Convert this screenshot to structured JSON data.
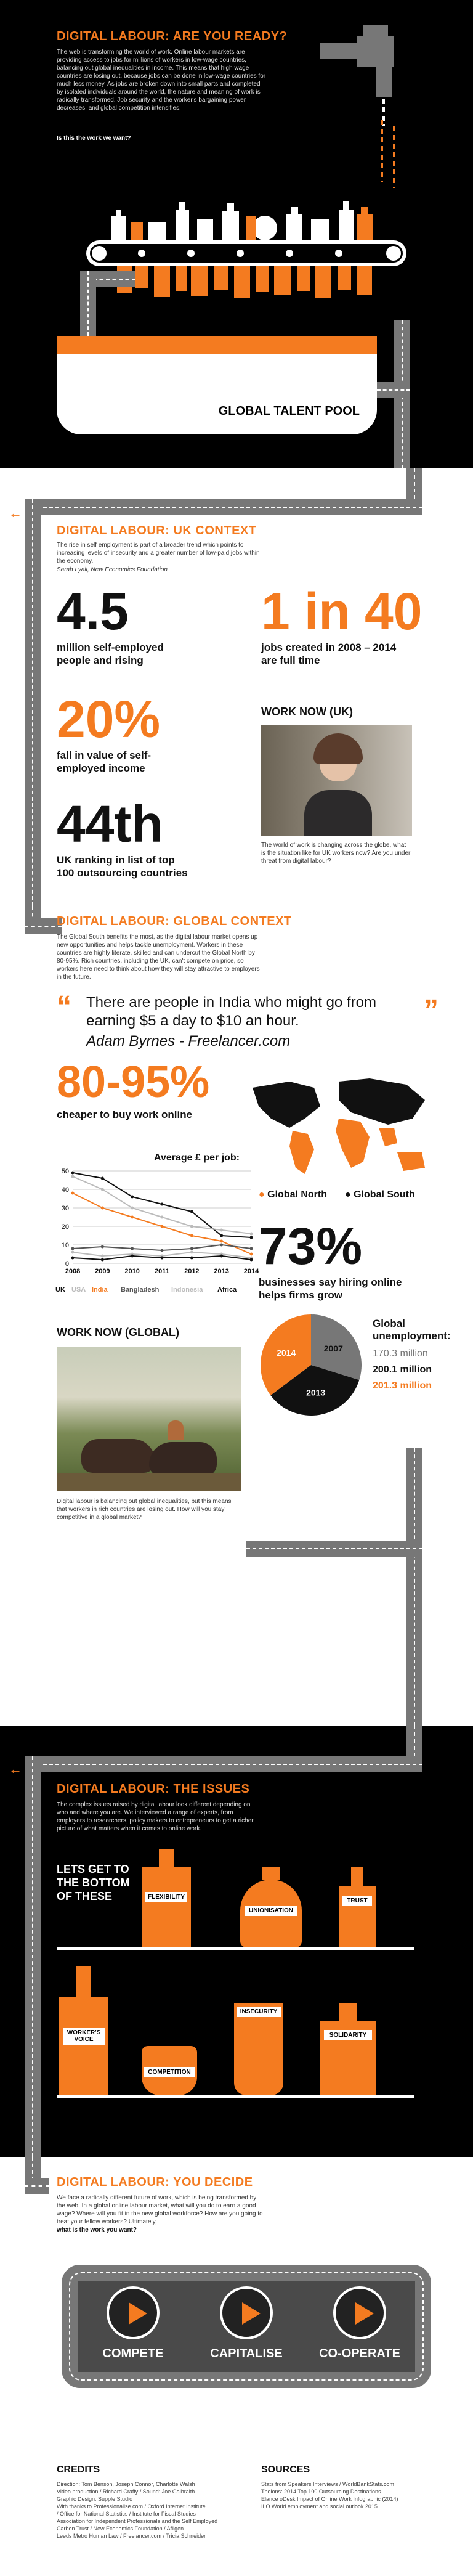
{
  "hero": {
    "title": "DIGITAL LABOUR: ARE YOU READY?",
    "intro": "The web is transforming the world of work. Online labour markets are providing access to jobs for millions of workers in low-wage countries, balancing out global inequalities in income. This means that high wage countries are losing out, because jobs can be done in low-wage countries for much less money. As jobs are broken down into small parts and completed by isolated individuals around the world, the nature and meaning of work is radically transformed. Job security and the worker's bargaining power decreases, and global competition intensifies.",
    "question": "Is this the work we want?",
    "pool_label": "GLOBAL TALENT POOL"
  },
  "uk": {
    "title": "DIGITAL LABOUR: UK CONTEXT",
    "quote": "The rise in self employment is part of a broader trend which points to increasing levels of insecurity and a greater number of low-paid jobs within the economy.",
    "quote_source": "Sarah Lyall, New Economics Foundation",
    "stat1_num": "4.5",
    "stat1_label": "million self-employed people and rising",
    "stat2_num": "1 in 40",
    "stat2_label": "jobs created in 2008 – 2014 are full time",
    "stat3_num": "20%",
    "stat3_label": "fall in value of self-employed income",
    "stat4_num": "44th",
    "stat4_label": "UK ranking in list of top 100 outsourcing countries",
    "work_now_title": "WORK NOW (UK)",
    "work_now_text": "The world of work is changing across the globe, what is the situation like for UK workers now? Are you under threat from digital labour?"
  },
  "global": {
    "title": "DIGITAL LABOUR: GLOBAL CONTEXT",
    "intro": "The Global South benefits the most, as the digital labour market opens up new opportunities and helps tackle unemployment. Workers in these countries are highly literate, skilled and can undercut the Global North by 80-95%. Rich countries, including the UK, can't compete on price, so workers here need to think about how they will stay attractive to employers in the future.",
    "quote": "There are people in India who might go from earning $5 a day to $10 an hour.",
    "quote_author": "Adam Byrnes - Freelancer.com",
    "stat1_num": "80-95%",
    "stat1_label": "cheaper to buy work online",
    "legend_north": "Global North",
    "legend_south": "Global South",
    "stat2_num": "73%",
    "stat2_label": "businesses say hiring online helps firms grow",
    "unemployment_title": "Global unemployment:",
    "unemployment_values": [
      {
        "year": "2007",
        "value": "170.3 million",
        "color": "#777777"
      },
      {
        "year": "2013",
        "value": "200.1 million",
        "color": "#ffffff"
      },
      {
        "year": "2014",
        "value": "201.3 million",
        "color": "#f47b20"
      }
    ],
    "work_now_title": "WORK NOW (GLOBAL)",
    "work_now_text": "Digital labour is balancing out global inequalities, but this means that workers in rich countries are losing out. How will you stay competitive in a global market?"
  },
  "chart_data": [
    {
      "type": "line",
      "title": "Average £ per job:",
      "x": [
        "2008",
        "2009",
        "2010",
        "2011",
        "2012",
        "2013",
        "2014"
      ],
      "ylim": [
        0,
        50
      ],
      "yticks": [
        0,
        10,
        20,
        30,
        40,
        50
      ],
      "grid": true,
      "series": [
        {
          "name": "UK",
          "color": "#111111",
          "values": [
            49,
            46,
            36,
            32,
            28,
            15,
            14
          ]
        },
        {
          "name": "USA",
          "color": "#bbbbbb",
          "values": [
            47,
            40,
            30,
            25,
            20,
            18,
            16
          ]
        },
        {
          "name": "India",
          "color": "#f47b20",
          "values": [
            38,
            30,
            25,
            20,
            15,
            12,
            5
          ]
        },
        {
          "name": "Bangladesh",
          "color": "#555555",
          "values": [
            8,
            9,
            8,
            7,
            8,
            10,
            8
          ]
        },
        {
          "name": "Indonesia",
          "color": "#bbbbbb",
          "values": [
            6,
            4,
            5,
            4,
            6,
            5,
            3
          ]
        },
        {
          "name": "Africa",
          "color": "#111111",
          "values": [
            3,
            2,
            4,
            3,
            3,
            4,
            2
          ]
        }
      ]
    },
    {
      "type": "pie",
      "title": "Global unemployment:",
      "labels": [
        "2007",
        "2013",
        "2014"
      ],
      "values": [
        170.3,
        200.1,
        201.3
      ],
      "colors": [
        "#777777",
        "#111111",
        "#f47b20"
      ]
    }
  ],
  "issues": {
    "title": "DIGITAL LABOUR: THE ISSUES",
    "intro": "The complex issues raised by digital labour look different depending on who and where you are. We interviewed a range of experts, from employers to researchers, policy makers to entrepreneurs to get a richer picture of what matters when it comes to online work.",
    "heading": "LETS GET TO THE BOTTOM OF THESE",
    "bottles": [
      "FLEXIBILITY",
      "UNIONISATION",
      "TRUST",
      "WORKER'S VOICE",
      "COMPETITION",
      "INSECURITY",
      "SOLIDARITY"
    ]
  },
  "decide": {
    "title": "DIGITAL LABOUR: YOU DECIDE",
    "text": "We face a radically different future of work, which is being transformed by the web. In a global online labour market, what will you do to earn a good wage? Where will you fit in the new global workforce? How are you going to treat your fellow workers? Ultimately,",
    "question": "what is the work you want?",
    "options": [
      "COMPETE",
      "CAPITALISE",
      "CO-OPERATE"
    ]
  },
  "footer": {
    "credits_title": "CREDITS",
    "credits_lines": [
      "Direction: Tom Benson, Joseph Connor, Charlotte Walsh",
      "Video production / Richard Craffy / Sound: Joe Galbraith",
      "Graphic Design: Supple Studio",
      "With thanks to Professionalise.com / Oxford Internet Institute",
      "/ Office for National Statistics / Institute for Fiscal Studies",
      "Association for Independent Professionals and the Self Employed",
      "Carbon Trust / New Economics Foundation / Afligen",
      "Leeds Metro Human Law / Freelancer.com / Tricia Schneider"
    ],
    "sources_title": "SOURCES",
    "sources_lines": [
      "Stats from Speakers Interviews / WorldBankStats.com",
      "Tholons: 2014 Top 100 Outsourcing Destinations",
      "Elance oDesk Impact of Online Work Infographic (2014)",
      "ILO World employment and social outlook 2015"
    ]
  }
}
